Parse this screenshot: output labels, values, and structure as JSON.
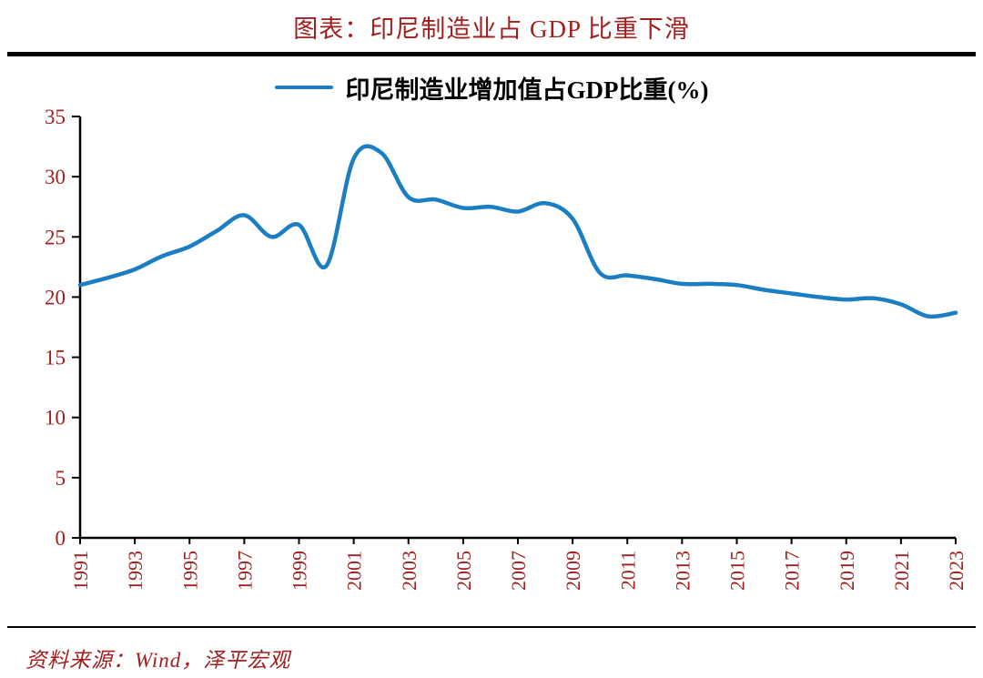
{
  "page": {
    "title": "图表：印尼制造业占 GDP 比重下滑",
    "source": "资料来源：Wind，泽平宏观"
  },
  "colors": {
    "text": "#A02020",
    "axis": "#000000",
    "line": "#1B7EC2"
  },
  "chart_data": {
    "type": "line",
    "title": "图表：印尼制造业占 GDP 比重下滑",
    "legend": "印尼制造业增加值占GDP比重(%)",
    "legend_position": "top-center",
    "grid": false,
    "ylim": [
      0,
      35
    ],
    "y_ticks": [
      0,
      5,
      10,
      15,
      20,
      25,
      30,
      35
    ],
    "x_tick_labels": [
      "1991",
      "1993",
      "1995",
      "1997",
      "1999",
      "2001",
      "2003",
      "2005",
      "2007",
      "2009",
      "2011",
      "2013",
      "2015",
      "2017",
      "2019",
      "2021",
      "2023"
    ],
    "x": [
      1991,
      1992,
      1993,
      1994,
      1995,
      1996,
      1997,
      1998,
      1999,
      2000,
      2001,
      2002,
      2003,
      2004,
      2005,
      2006,
      2007,
      2008,
      2009,
      2010,
      2011,
      2012,
      2013,
      2014,
      2015,
      2016,
      2017,
      2018,
      2019,
      2020,
      2021,
      2022,
      2023
    ],
    "values": [
      21.0,
      21.6,
      22.3,
      23.4,
      24.2,
      25.5,
      26.8,
      25.0,
      26.0,
      22.6,
      31.5,
      32.0,
      28.3,
      28.1,
      27.4,
      27.5,
      27.1,
      27.8,
      26.5,
      22.0,
      21.8,
      21.5,
      21.1,
      21.1,
      21.0,
      20.6,
      20.3,
      20.0,
      19.8,
      19.9,
      19.4,
      18.4,
      18.7
    ],
    "line_color": "#1B7EC2"
  }
}
